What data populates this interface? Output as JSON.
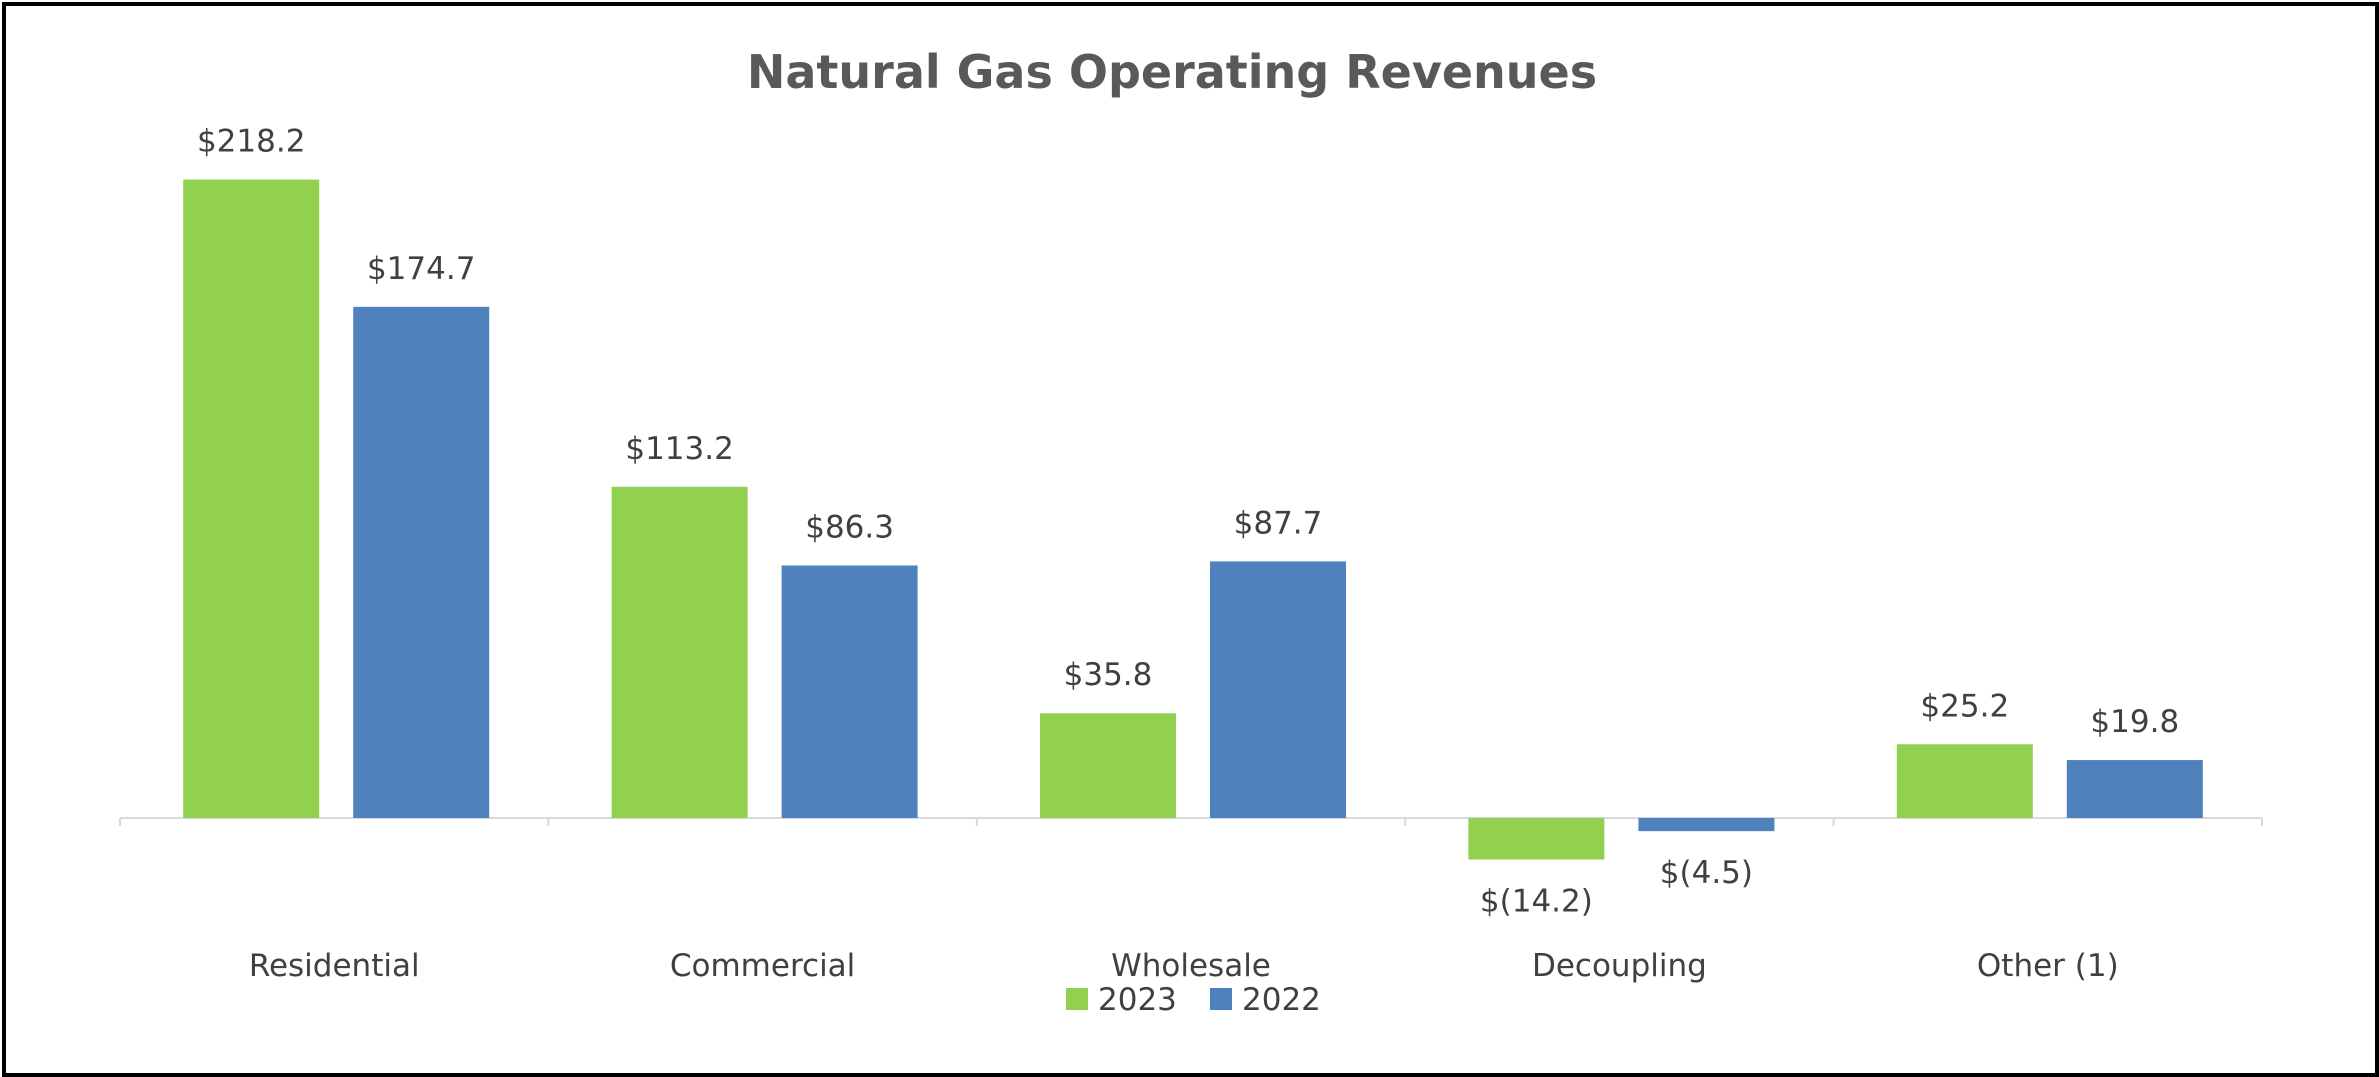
{
  "chart_data": {
    "type": "bar",
    "title": "Natural Gas Operating Revenues",
    "xlabel": "",
    "ylabel": "",
    "categories": [
      "Residential",
      "Commercial",
      "Wholesale",
      "Decoupling",
      "Other (1)"
    ],
    "series": [
      {
        "name": "2023",
        "color": "#92D050",
        "values": [
          218.2,
          113.2,
          35.8,
          -14.2,
          25.2
        ],
        "labels": [
          "$218.2",
          "$113.2",
          "$35.8",
          "$(14.2)",
          "$25.2"
        ]
      },
      {
        "name": "2022",
        "color": "#4F81BD",
        "values": [
          174.7,
          86.3,
          87.7,
          -4.5,
          19.8
        ],
        "labels": [
          "$174.7",
          "$86.3",
          "$87.7",
          "$(4.5)",
          "$19.8"
        ]
      }
    ],
    "legend": "bottom-center",
    "grid": false
  }
}
